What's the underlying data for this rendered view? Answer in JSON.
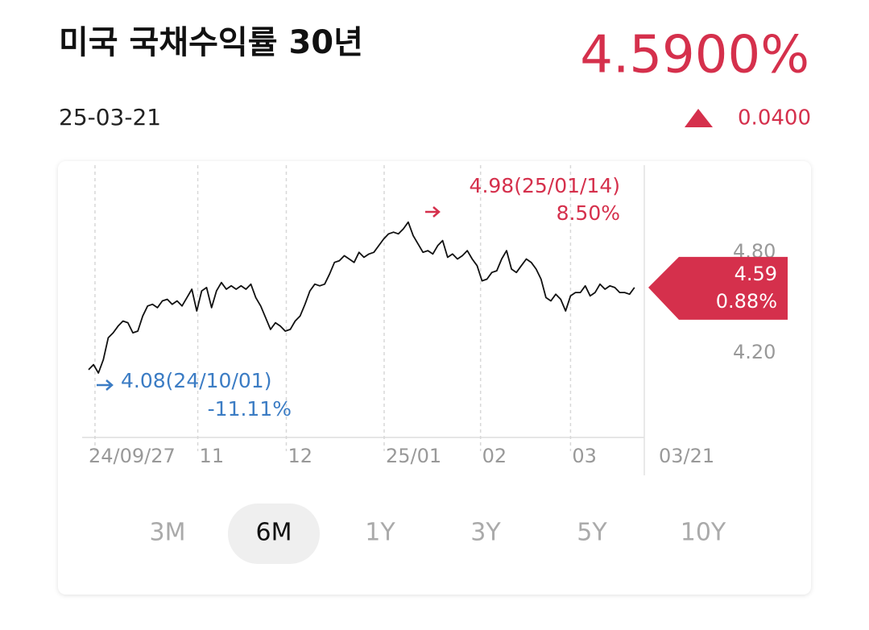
{
  "header": {
    "title": "미국 국채수익률 30년",
    "date": "25-03-21",
    "price": "4.5900%",
    "change": "0.0400"
  },
  "chart_data": {
    "type": "line",
    "color": "#111111",
    "up_color": "#d5304c",
    "down_color": "#3b7cc4",
    "values": [
      4.1,
      4.13,
      4.08,
      4.16,
      4.29,
      4.32,
      4.36,
      4.39,
      4.38,
      4.32,
      4.33,
      4.42,
      4.48,
      4.49,
      4.47,
      4.51,
      4.52,
      4.49,
      4.51,
      4.48,
      4.53,
      4.58,
      4.45,
      4.57,
      4.59,
      4.47,
      4.57,
      4.62,
      4.58,
      4.6,
      4.58,
      4.6,
      4.58,
      4.61,
      4.53,
      4.48,
      4.41,
      4.34,
      4.38,
      4.36,
      4.33,
      4.34,
      4.39,
      4.42,
      4.49,
      4.57,
      4.61,
      4.6,
      4.61,
      4.67,
      4.74,
      4.75,
      4.78,
      4.76,
      4.74,
      4.8,
      4.77,
      4.79,
      4.8,
      4.84,
      4.88,
      4.91,
      4.92,
      4.91,
      4.94,
      4.98,
      4.9,
      4.85,
      4.8,
      4.81,
      4.79,
      4.84,
      4.87,
      4.77,
      4.79,
      4.76,
      4.78,
      4.81,
      4.76,
      4.72,
      4.63,
      4.64,
      4.68,
      4.69,
      4.76,
      4.81,
      4.7,
      4.68,
      4.72,
      4.76,
      4.74,
      4.7,
      4.64,
      4.53,
      4.51,
      4.55,
      4.52,
      4.45,
      4.54,
      4.56,
      4.56,
      4.6,
      4.54,
      4.56,
      4.61,
      4.58,
      4.6,
      4.59,
      4.56,
      4.56,
      4.55,
      4.59
    ],
    "xlim": [
      0,
      113
    ],
    "xticks": [
      {
        "value": 1.3,
        "label": "24/09/27"
      },
      {
        "value": 22.2,
        "label": "11"
      },
      {
        "value": 40.2,
        "label": "12"
      },
      {
        "value": 60.1,
        "label": "25/01"
      },
      {
        "value": 79.7,
        "label": "02"
      },
      {
        "value": 98,
        "label": "03"
      },
      {
        "value": 113,
        "label": "03/21"
      }
    ],
    "ylim": [
      3.71,
      5.32
    ],
    "yticks": [
      {
        "value": 4.2,
        "label": "4.20"
      },
      {
        "value": 4.8,
        "label": "4.80"
      }
    ],
    "max": {
      "label": "4.98(25/01/14)",
      "change": "8.50%"
    },
    "min": {
      "label": "4.08(24/10/01)",
      "change": "-11.11%"
    },
    "current": {
      "value": 4.59,
      "label": "4.59",
      "change": "0.88%"
    }
  },
  "ranges": {
    "options": [
      "3M",
      "6M",
      "1Y",
      "3Y",
      "5Y",
      "10Y"
    ],
    "selected": 1
  }
}
